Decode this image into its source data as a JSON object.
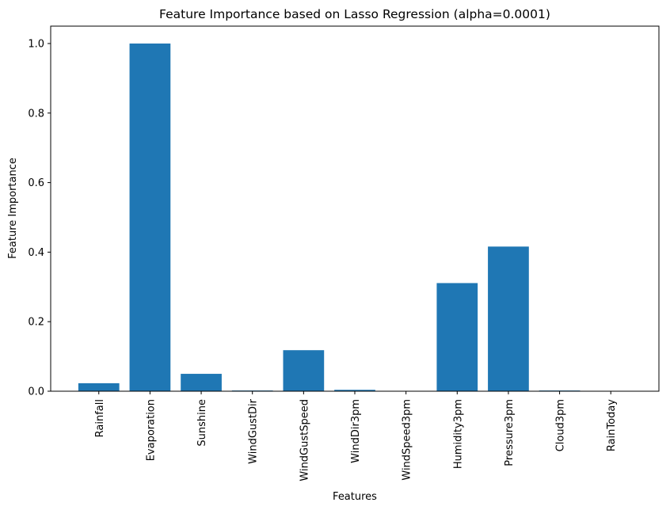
{
  "chart_data": {
    "type": "bar",
    "title": "Feature Importance based on Lasso Regression (alpha=0.0001)",
    "xlabel": "Features",
    "ylabel": "Feature Importance",
    "categories": [
      "Rainfall",
      "Evaporation",
      "Sunshine",
      "WindGustDir",
      "WindGustSpeed",
      "WindDir3pm",
      "WindSpeed3pm",
      "Humidity3pm",
      "Pressure3pm",
      "Cloud3pm",
      "RainToday"
    ],
    "values": [
      0.023,
      1.0,
      0.05,
      0.002,
      0.118,
      0.004,
      0.0,
      0.311,
      0.416,
      0.002,
      0.0
    ],
    "ylim": [
      0,
      1.05
    ],
    "yticks": [
      "0.0",
      "0.2",
      "0.4",
      "0.6",
      "0.8",
      "1.0"
    ],
    "bar_color": "#1f77b4",
    "grid": false,
    "legend": "none"
  }
}
